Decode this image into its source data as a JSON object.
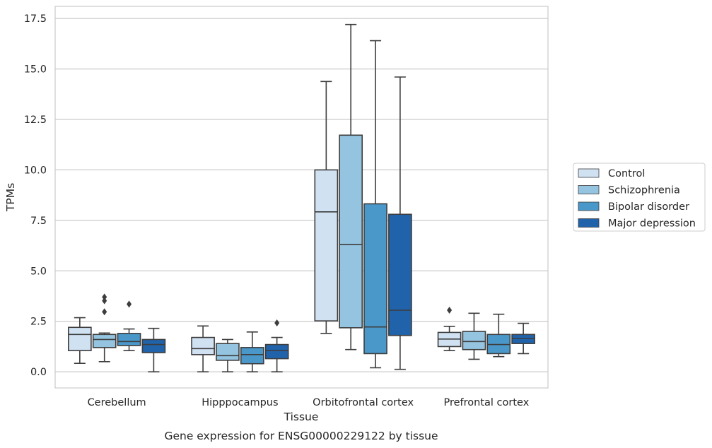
{
  "caption": "Gene expression for ENSG00000229122 by tissue",
  "chart_data": {
    "type": "box",
    "xlabel": "Tissue",
    "ylabel": "TPMs",
    "ylim": [
      -0.8,
      18.1
    ],
    "yticks": [
      "0.0",
      "2.5",
      "5.0",
      "7.5",
      "10.0",
      "12.5",
      "15.0",
      "17.5"
    ],
    "grid": "horizontal",
    "legend_position": "right",
    "categories": [
      "Cerebellum",
      "Hipppocampus",
      "Orbitofrontal cortex",
      "Prefrontal cortex"
    ],
    "series": [
      {
        "name": "Control",
        "color": "#d0e1f2",
        "boxes": [
          {
            "whislo": 0.42,
            "q1": 1.05,
            "med": 1.85,
            "q3": 2.2,
            "whishi": 2.68,
            "fliers": []
          },
          {
            "whislo": 0.0,
            "q1": 0.85,
            "med": 1.15,
            "q3": 1.7,
            "whishi": 2.27,
            "fliers": []
          },
          {
            "whislo": 1.9,
            "q1": 2.52,
            "med": 7.92,
            "q3": 10.0,
            "whishi": 14.38,
            "fliers": []
          },
          {
            "whislo": 1.05,
            "q1": 1.25,
            "med": 1.62,
            "q3": 1.95,
            "whishi": 2.25,
            "fliers": [
              3.05
            ]
          }
        ]
      },
      {
        "name": "Schizophrenia",
        "color": "#94c4df",
        "boxes": [
          {
            "whislo": 0.5,
            "q1": 1.2,
            "med": 1.6,
            "q3": 1.85,
            "whishi": 1.92,
            "fliers": [
              2.97,
              3.52,
              3.7
            ]
          },
          {
            "whislo": 0.0,
            "q1": 0.57,
            "med": 0.8,
            "q3": 1.4,
            "whishi": 1.6,
            "fliers": []
          },
          {
            "whislo": 1.1,
            "q1": 2.18,
            "med": 6.3,
            "q3": 11.72,
            "whishi": 17.2,
            "fliers": []
          },
          {
            "whislo": 0.62,
            "q1": 1.1,
            "med": 1.5,
            "q3": 2.0,
            "whishi": 2.9,
            "fliers": []
          }
        ]
      },
      {
        "name": "Bipolar disorder",
        "color": "#4a98c9",
        "boxes": [
          {
            "whislo": 1.05,
            "q1": 1.3,
            "med": 1.5,
            "q3": 1.9,
            "whishi": 2.12,
            "fliers": [
              3.35
            ]
          },
          {
            "whislo": 0.0,
            "q1": 0.4,
            "med": 0.85,
            "q3": 1.2,
            "whishi": 1.97,
            "fliers": []
          },
          {
            "whislo": 0.2,
            "q1": 0.9,
            "med": 2.22,
            "q3": 8.32,
            "whishi": 16.4,
            "fliers": []
          },
          {
            "whislo": 0.75,
            "q1": 0.9,
            "med": 1.35,
            "q3": 1.85,
            "whishi": 2.85,
            "fliers": []
          }
        ]
      },
      {
        "name": "Major depression",
        "color": "#2163aa",
        "boxes": [
          {
            "whislo": 0.0,
            "q1": 0.95,
            "med": 1.35,
            "q3": 1.6,
            "whishi": 2.15,
            "fliers": []
          },
          {
            "whislo": 0.0,
            "q1": 0.65,
            "med": 1.05,
            "q3": 1.35,
            "whishi": 1.7,
            "fliers": [
              2.42
            ]
          },
          {
            "whislo": 0.12,
            "q1": 1.8,
            "med": 3.05,
            "q3": 7.8,
            "whishi": 14.6,
            "fliers": []
          },
          {
            "whislo": 0.9,
            "q1": 1.4,
            "med": 1.65,
            "q3": 1.85,
            "whishi": 2.4,
            "fliers": []
          }
        ]
      }
    ]
  }
}
